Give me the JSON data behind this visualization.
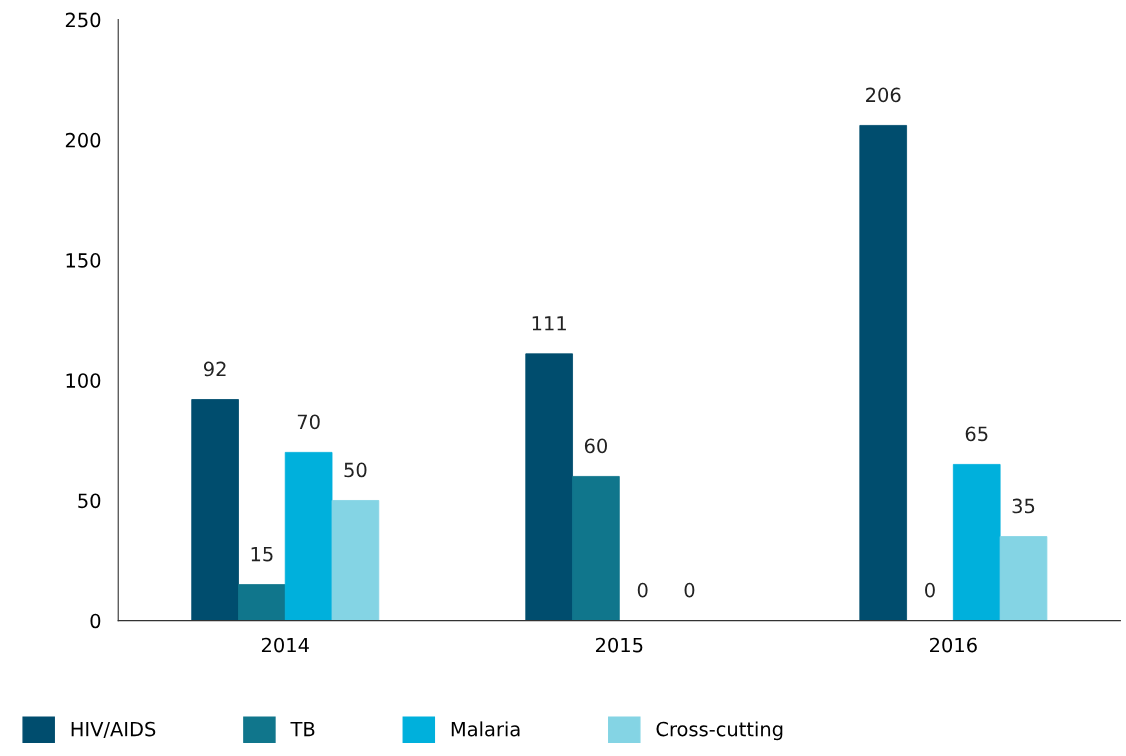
{
  "chart_data": {
    "type": "bar",
    "categories": [
      "2014",
      "2015",
      "2016"
    ],
    "series": [
      {
        "name": "HIV/AIDS",
        "color": "#004d6e",
        "values": [
          92,
          111,
          206
        ]
      },
      {
        "name": "TB",
        "color": "#10768c",
        "values": [
          15,
          60,
          0
        ]
      },
      {
        "name": "Malaria",
        "color": "#00b0dc",
        "values": [
          70,
          0,
          65
        ]
      },
      {
        "name": "Cross-cutting",
        "color": "#84d4e4",
        "values": [
          50,
          0,
          35
        ]
      }
    ],
    "ylim": [
      0,
      250
    ],
    "yticks": [
      0,
      50,
      100,
      150,
      200,
      250
    ],
    "data_labels": true,
    "grid": false,
    "legend": "bottom"
  }
}
